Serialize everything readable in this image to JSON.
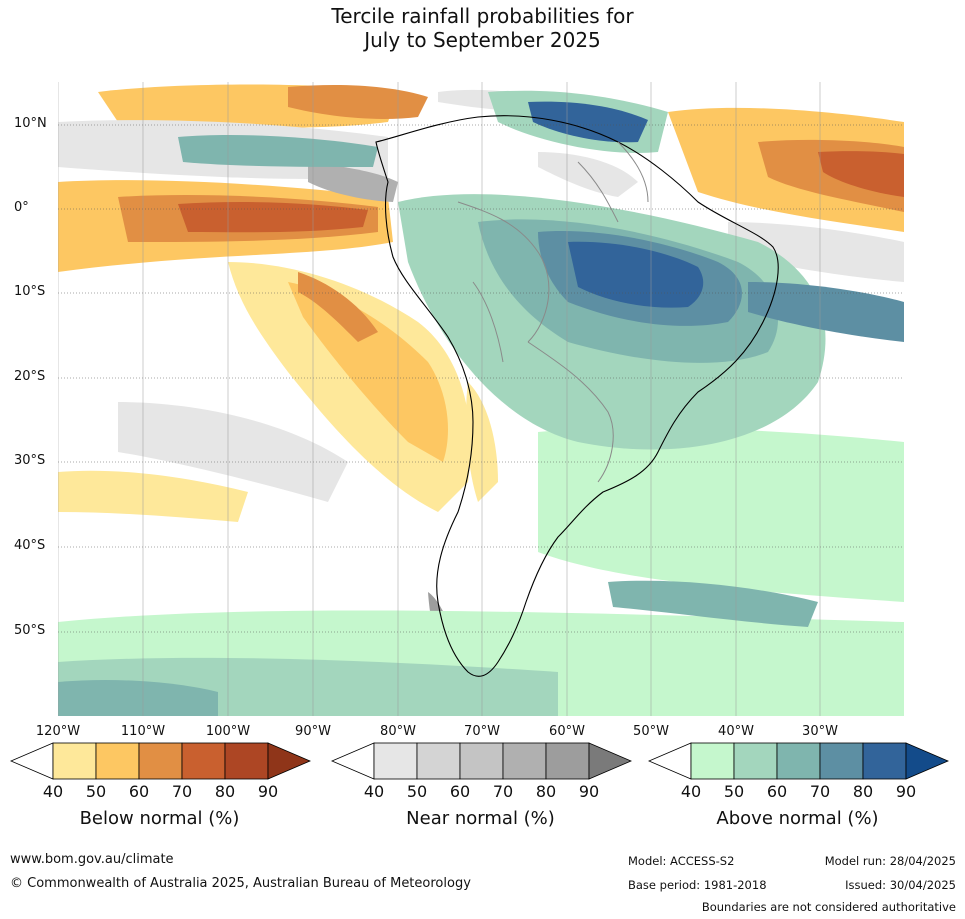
{
  "title": {
    "line1": "Tercile rainfall probabilities for",
    "line2": "July to September 2025"
  },
  "map": {
    "lat_labels": [
      "10°N",
      "0°",
      "10°S",
      "20°S",
      "30°S",
      "40°S",
      "50°S"
    ],
    "lon_labels": [
      "120°W",
      "110°W",
      "100°W",
      "90°W",
      "80°W",
      "70°W",
      "60°W",
      "50°W",
      "40°W",
      "30°W"
    ],
    "colors": {
      "below": [
        "#ffffff",
        "#fee89a",
        "#fdc762",
        "#e18f44",
        "#c9602f",
        "#ad4624",
        "#8f3519"
      ],
      "near": [
        "#ffffff",
        "#e6e6e6",
        "#d4d4d4",
        "#c4c4c4",
        "#b0b0b0",
        "#9d9d9d",
        "#7a7a7a"
      ],
      "above": [
        "#ffffff",
        "#c5f7cd",
        "#a3d6bd",
        "#7fb5ae",
        "#5d8fa3",
        "#32649a",
        "#134b8a"
      ],
      "coast": "#000000",
      "borders": "#8a8a8a"
    }
  },
  "colorbars": [
    {
      "key": "below",
      "title": "Below normal (%)",
      "ticks": [
        "40",
        "50",
        "60",
        "70",
        "80",
        "90"
      ]
    },
    {
      "key": "near",
      "title": "Near normal (%)",
      "ticks": [
        "40",
        "50",
        "60",
        "70",
        "80",
        "90"
      ]
    },
    {
      "key": "above",
      "title": "Above normal (%)",
      "ticks": [
        "40",
        "50",
        "60",
        "70",
        "80",
        "90"
      ]
    }
  ],
  "footer": {
    "website": "www.bom.gov.au/climate",
    "copyright": "© Commonwealth of Australia 2025, Australian Bureau of Meteorology",
    "model": "Model: ACCESS-S2",
    "base_period": "Base period: 1981-2018",
    "model_run": "Model run: 28/04/2025",
    "issued": "Issued: 30/04/2025",
    "disclaimer": "Boundaries are not considered authoritative"
  }
}
